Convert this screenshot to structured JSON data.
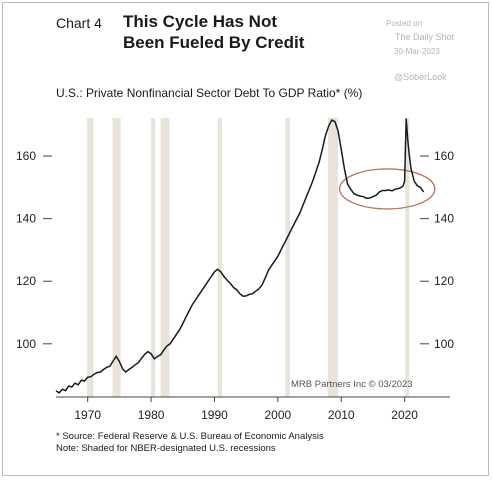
{
  "header": {
    "chart_label": "Chart 4",
    "title_line1": "This Cycle Has Not",
    "title_line2": "Been Fueled By Credit"
  },
  "watermark": {
    "posted_on": "Posted on",
    "site": "The Daily Shot",
    "date": "30-Mar-2023",
    "handle": "@SoberLook"
  },
  "colors": {
    "line": "#1a1a1a",
    "recession": "#e8e4dc",
    "annotation_circle": "#b5745a"
  },
  "chart_data": {
    "type": "line",
    "title": "U.S.: Private Nonfinancial Sector Debt To GDP Ratio* (%)",
    "xlabel": "",
    "ylabel": "",
    "xlim": [
      1965,
      2024
    ],
    "ylim": [
      83,
      176
    ],
    "x_ticks": [
      1970,
      1980,
      1990,
      2000,
      2010,
      2020
    ],
    "y_ticks": [
      100,
      120,
      140,
      160
    ],
    "right_axis": true,
    "grid": false,
    "credit": "MRB Partners Inc © 03/2023",
    "recessions": [
      [
        1969.9,
        1970.9
      ],
      [
        1973.9,
        1975.2
      ],
      [
        1980.0,
        1980.5
      ],
      [
        1981.5,
        1982.9
      ],
      [
        1990.5,
        1991.2
      ],
      [
        2001.2,
        2001.9
      ],
      [
        2007.9,
        2009.5
      ],
      [
        2020.1,
        2020.4
      ]
    ],
    "series": [
      {
        "values": [
          [
            1965.0,
            85.0
          ],
          [
            1965.5,
            84.3
          ],
          [
            1966.0,
            85.5
          ],
          [
            1966.5,
            85.0
          ],
          [
            1967.0,
            86.5
          ],
          [
            1967.5,
            86.2
          ],
          [
            1968.0,
            87.4
          ],
          [
            1968.5,
            86.9
          ],
          [
            1969.0,
            88.4
          ],
          [
            1969.5,
            88.1
          ],
          [
            1970.0,
            89.3
          ],
          [
            1970.5,
            89.5
          ],
          [
            1971.0,
            90.3
          ],
          [
            1971.5,
            90.8
          ],
          [
            1972.0,
            91.0
          ],
          [
            1972.5,
            91.8
          ],
          [
            1973.0,
            92.5
          ],
          [
            1973.5,
            92.8
          ],
          [
            1974.0,
            94.5
          ],
          [
            1974.5,
            96.0
          ],
          [
            1975.0,
            94.3
          ],
          [
            1975.5,
            92.0
          ],
          [
            1976.0,
            91.0
          ],
          [
            1976.5,
            91.8
          ],
          [
            1977.0,
            92.5
          ],
          [
            1977.5,
            93.3
          ],
          [
            1978.0,
            94.0
          ],
          [
            1978.5,
            95.4
          ],
          [
            1979.0,
            96.6
          ],
          [
            1979.5,
            97.5
          ],
          [
            1980.0,
            96.8
          ],
          [
            1980.5,
            95.2
          ],
          [
            1981.0,
            95.9
          ],
          [
            1981.5,
            96.5
          ],
          [
            1982.0,
            98.0
          ],
          [
            1982.5,
            99.3
          ],
          [
            1983.0,
            100.0
          ],
          [
            1983.5,
            101.5
          ],
          [
            1984.0,
            103.0
          ],
          [
            1984.5,
            104.5
          ],
          [
            1985.0,
            106.5
          ],
          [
            1985.5,
            108.5
          ],
          [
            1986.0,
            110.5
          ],
          [
            1986.5,
            112.5
          ],
          [
            1987.0,
            114.0
          ],
          [
            1987.5,
            115.5
          ],
          [
            1988.0,
            117.0
          ],
          [
            1988.5,
            118.5
          ],
          [
            1989.0,
            120.0
          ],
          [
            1989.5,
            121.5
          ],
          [
            1990.0,
            123.0
          ],
          [
            1990.5,
            123.8
          ],
          [
            1991.0,
            123.0
          ],
          [
            1991.5,
            121.5
          ],
          [
            1992.0,
            120.3
          ],
          [
            1992.5,
            119.3
          ],
          [
            1993.0,
            118.0
          ],
          [
            1993.5,
            117.3
          ],
          [
            1994.0,
            116.0
          ],
          [
            1994.5,
            115.2
          ],
          [
            1995.0,
            115.3
          ],
          [
            1995.5,
            115.8
          ],
          [
            1996.0,
            116.0
          ],
          [
            1996.5,
            116.8
          ],
          [
            1997.0,
            117.5
          ],
          [
            1997.5,
            118.8
          ],
          [
            1998.0,
            121.0
          ],
          [
            1998.5,
            123.5
          ],
          [
            1999.0,
            125.0
          ],
          [
            1999.5,
            126.5
          ],
          [
            2000.0,
            128.0
          ],
          [
            2000.5,
            130.0
          ],
          [
            2001.0,
            132.0
          ],
          [
            2001.5,
            134.0
          ],
          [
            2002.0,
            136.0
          ],
          [
            2002.5,
            138.0
          ],
          [
            2003.0,
            140.0
          ],
          [
            2003.5,
            142.0
          ],
          [
            2004.0,
            144.5
          ],
          [
            2004.5,
            147.0
          ],
          [
            2005.0,
            149.5
          ],
          [
            2005.5,
            152.0
          ],
          [
            2006.0,
            155.0
          ],
          [
            2006.5,
            158.0
          ],
          [
            2007.0,
            162.0
          ],
          [
            2007.5,
            166.5
          ],
          [
            2008.0,
            169.5
          ],
          [
            2008.5,
            171.5
          ],
          [
            2009.0,
            171.0
          ],
          [
            2009.5,
            168.0
          ],
          [
            2010.0,
            162.0
          ],
          [
            2010.5,
            156.0
          ],
          [
            2011.0,
            151.0
          ],
          [
            2011.5,
            149.3
          ],
          [
            2012.0,
            148.0
          ],
          [
            2012.5,
            147.5
          ],
          [
            2013.0,
            147.2
          ],
          [
            2013.5,
            147.0
          ],
          [
            2014.0,
            146.5
          ],
          [
            2014.5,
            146.6
          ],
          [
            2015.0,
            147.0
          ],
          [
            2015.5,
            147.5
          ],
          [
            2016.0,
            148.5
          ],
          [
            2016.5,
            149.0
          ],
          [
            2017.0,
            149.0
          ],
          [
            2017.5,
            149.2
          ],
          [
            2018.0,
            148.9
          ],
          [
            2018.5,
            149.4
          ],
          [
            2019.0,
            149.6
          ],
          [
            2019.5,
            150.0
          ],
          [
            2019.75,
            150.5
          ],
          [
            2020.0,
            152.0
          ],
          [
            2020.25,
            172.0
          ],
          [
            2020.5,
            165.0
          ],
          [
            2020.75,
            160.0
          ],
          [
            2021.0,
            156.0
          ],
          [
            2021.5,
            152.0
          ],
          [
            2022.0,
            150.5
          ],
          [
            2022.5,
            150.0
          ],
          [
            2023.0,
            148.5
          ]
        ]
      }
    ]
  },
  "notes": {
    "source": "* Source: Federal Reserve & U.S. Bureau of Economic Analysis",
    "shading": "Note: Shaded for NBER-designated U.S. recessions"
  }
}
